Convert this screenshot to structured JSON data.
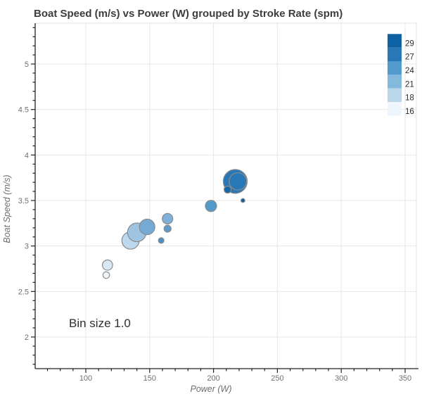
{
  "title": "Boat Speed (m/s) vs Power (W) grouped by Stroke Rate (spm)",
  "annotation": "Bin size 1.0",
  "chart_data": {
    "type": "scatter",
    "title": "Boat Speed (m/s) vs Power (W) grouped by Stroke Rate (spm)",
    "xlabel": "Power (W)",
    "ylabel": "Boat Speed (m/s)",
    "xlim": [
      60,
      359
    ],
    "ylim": [
      1.65,
      5.45
    ],
    "grid": true,
    "x_ticks": [
      100,
      150,
      200,
      250,
      300,
      350
    ],
    "y_ticks": [
      2,
      2.5,
      3,
      3.5,
      4,
      4.5,
      5
    ],
    "x_minor_step": 10,
    "y_minor_step": 0.1,
    "legend": {
      "position": "top-right-inside",
      "group_label": "Stroke Rate (spm)",
      "entries": [
        {
          "label": "29",
          "color": "#0d61a4"
        },
        {
          "label": "27",
          "color": "#2878b8"
        },
        {
          "label": "24",
          "color": "#5299cc"
        },
        {
          "label": "21",
          "color": "#84b9dc"
        },
        {
          "label": "18",
          "color": "#bad6eb"
        },
        {
          "label": "16",
          "color": "#eff5fc"
        }
      ]
    },
    "marker_edge_color": "#8a8a8a",
    "points": [
      {
        "power": 135,
        "speed": 3.06,
        "stroke_rate": 18,
        "radius": 12.3,
        "color": "#bdd7ed"
      },
      {
        "power": 140,
        "speed": 3.15,
        "stroke_rate": 21,
        "radius": 13.3,
        "color": "#9fc4e2"
      },
      {
        "power": 148,
        "speed": 3.21,
        "stroke_rate": 24,
        "radius": 11.0,
        "color": "#74aad4"
      },
      {
        "power": 117,
        "speed": 2.79,
        "stroke_rate": 18,
        "radius": 7.3,
        "color": "#d9e8f5"
      },
      {
        "power": 116,
        "speed": 2.68,
        "stroke_rate": 16,
        "radius": 4.7,
        "color": "#f0f7fc"
      },
      {
        "power": 159,
        "speed": 3.06,
        "stroke_rate": 24,
        "radius": 4.0,
        "color": "#4a90c4"
      },
      {
        "power": 164,
        "speed": 3.19,
        "stroke_rate": 24,
        "radius": 5.0,
        "color": "#5e9cca"
      },
      {
        "power": 164,
        "speed": 3.3,
        "stroke_rate": 21,
        "radius": 7.5,
        "color": "#7fb0d9"
      },
      {
        "power": 198,
        "speed": 3.44,
        "stroke_rate": 24,
        "radius": 8.0,
        "color": "#5299cc"
      },
      {
        "power": 217,
        "speed": 3.71,
        "stroke_rate": 27,
        "radius": 17.0,
        "color": "#2878b8"
      },
      {
        "power": 219,
        "speed": 3.71,
        "stroke_rate": 27,
        "radius": 12.3,
        "color": "#2878b8"
      },
      {
        "power": 211,
        "speed": 3.62,
        "stroke_rate": 29,
        "radius": 5.0,
        "color": "#1467ab"
      },
      {
        "power": 223,
        "speed": 3.5,
        "stroke_rate": 29,
        "radius": 2.8,
        "color": "#0d61a4"
      }
    ]
  }
}
